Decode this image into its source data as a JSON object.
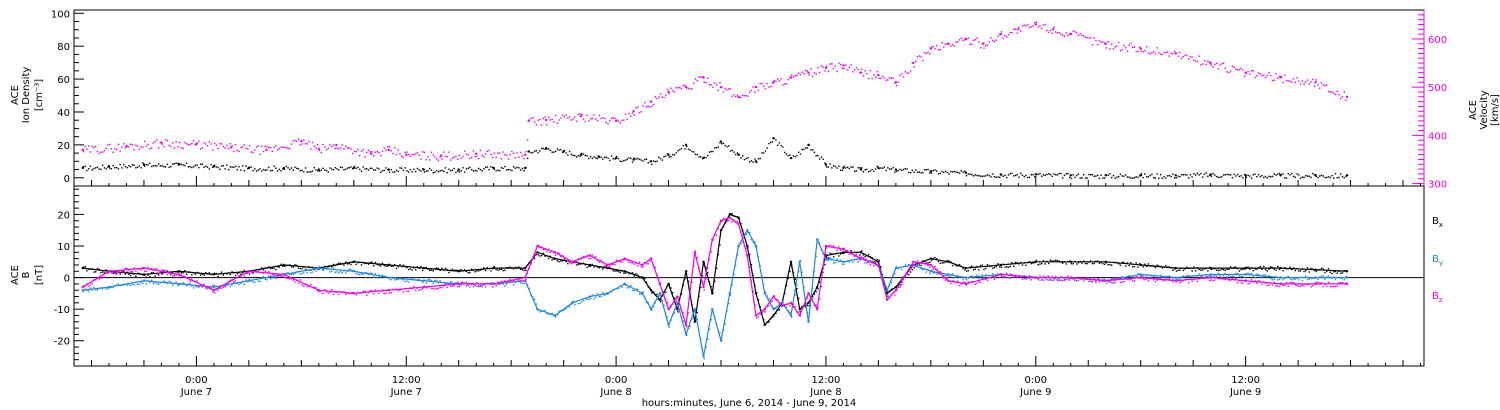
{
  "colors": {
    "black": "#000000",
    "magenta": "#ee00ee",
    "blue": "#1f88dd"
  },
  "xlabel": "hours:minutes, June  6, 2014 - June  9, 2014",
  "x_ticks": [
    {
      "time": "0:00",
      "date": "June 7",
      "hour": 24
    },
    {
      "time": "12:00",
      "date": "June 7",
      "hour": 36
    },
    {
      "time": "0:00",
      "date": "June 8",
      "hour": 48
    },
    {
      "time": "12:00",
      "date": "June 8",
      "hour": 60
    },
    {
      "time": "0:00",
      "date": "June 9",
      "hour": 72
    },
    {
      "time": "12:00",
      "date": "June 9",
      "hour": 84
    }
  ],
  "chart_data": [
    {
      "type": "scatter",
      "panel": "top",
      "x_unit": "hours since June 6 0:00",
      "xlim": [
        17,
        94.2
      ],
      "ylabel": [
        "ACE",
        "Ion Density",
        "[cm⁻³]"
      ],
      "ylim": [
        -5,
        102
      ],
      "yticks": [
        0,
        20,
        40,
        60,
        80,
        100
      ],
      "ylabel_right": [
        "ACE",
        "Velocity",
        "[km/s]"
      ],
      "ylim_right": [
        295,
        660
      ],
      "yticks_right": [
        300,
        400,
        500,
        600
      ],
      "series": [
        {
          "name": "Ion Density",
          "axis": "left",
          "color": "#000000",
          "x": [
            17.5,
            19,
            21,
            23,
            25,
            27,
            29,
            31,
            33,
            35,
            37,
            39,
            41,
            42.8,
            43,
            44,
            45,
            46,
            47,
            48,
            49,
            50,
            51,
            52,
            53,
            54,
            55,
            56,
            57,
            58,
            59,
            60,
            61,
            62,
            63,
            64,
            66,
            68,
            70,
            72,
            74,
            76,
            78,
            80,
            82,
            84,
            86,
            88,
            89.8
          ],
          "y": [
            6,
            7,
            8,
            8,
            7,
            6,
            6,
            5,
            6,
            5,
            5,
            5,
            6,
            6,
            16,
            18,
            16,
            14,
            13,
            12,
            11,
            10,
            14,
            20,
            12,
            22,
            14,
            10,
            24,
            12,
            20,
            8,
            6,
            5,
            6,
            5,
            4,
            3,
            2,
            2,
            1.5,
            1.5,
            1.5,
            1.5,
            2,
            1.5,
            1.5,
            1.5,
            1.5
          ]
        },
        {
          "name": "Velocity",
          "axis": "right",
          "color": "#ee00ee",
          "x": [
            17.5,
            20,
            22,
            24,
            26,
            28,
            30,
            31,
            32,
            34,
            35,
            36,
            38,
            40,
            42.8,
            43,
            44,
            46,
            48,
            49,
            50,
            51,
            52,
            53,
            54,
            55,
            56,
            57,
            58,
            59,
            60,
            61,
            62,
            63,
            64,
            65,
            66,
            67,
            68,
            69,
            70,
            71,
            72,
            73,
            74,
            76,
            78,
            80,
            82,
            84,
            86,
            88,
            89.8
          ],
          "y": [
            370,
            378,
            385,
            382,
            375,
            370,
            388,
            372,
            380,
            362,
            370,
            360,
            358,
            362,
            360,
            430,
            432,
            440,
            430,
            450,
            470,
            490,
            500,
            520,
            500,
            480,
            500,
            510,
            520,
            530,
            540,
            545,
            530,
            525,
            510,
            550,
            580,
            590,
            600,
            590,
            610,
            620,
            630,
            620,
            610,
            590,
            580,
            570,
            550,
            530,
            520,
            510,
            480
          ]
        }
      ]
    },
    {
      "type": "line",
      "panel": "bottom",
      "x_unit": "hours since June 6 0:00",
      "xlim": [
        17,
        94.2
      ],
      "ylabel": [
        "ACE",
        "B",
        "[nT]"
      ],
      "ylim": [
        -28,
        29
      ],
      "yticks": [
        -20,
        -10,
        0,
        10,
        20
      ],
      "reference_line": 0,
      "series": [
        {
          "name": "Bx",
          "color": "#000000",
          "x": [
            17.5,
            19,
            21,
            23,
            25,
            27,
            29,
            31,
            33,
            35,
            37,
            39,
            41,
            42.8,
            43.5,
            44.5,
            45.5,
            46.5,
            47.5,
            48.5,
            49.5,
            50,
            50.5,
            51,
            51.5,
            52,
            52.5,
            53,
            53.5,
            54,
            54.5,
            55,
            55.5,
            56,
            56.5,
            57,
            57.5,
            58,
            58.5,
            59,
            59.5,
            60,
            61,
            62,
            63,
            63.5,
            64,
            65,
            66,
            67,
            68,
            70,
            72,
            74,
            76,
            78,
            80,
            82,
            84,
            86,
            88,
            89.8
          ],
          "y": [
            3,
            2,
            1,
            2,
            1,
            2,
            4,
            3,
            5,
            4,
            3,
            2,
            3,
            3,
            8,
            6,
            5,
            4,
            3,
            2,
            0,
            -4,
            -7,
            -2,
            -10,
            2,
            -14,
            5,
            -5,
            15,
            20,
            19,
            10,
            -5,
            -15,
            -12,
            -8,
            5,
            -10,
            -8,
            -3,
            7,
            8,
            8,
            5,
            -5,
            -3,
            4,
            6,
            5,
            3,
            4,
            5,
            5,
            5,
            4,
            3,
            3,
            3,
            3,
            2.5,
            2
          ]
        },
        {
          "name": "By",
          "color": "#1f88dd",
          "x": [
            17.5,
            19,
            21,
            23,
            25,
            27,
            29,
            31,
            33,
            35,
            37,
            39,
            41,
            42.8,
            43.5,
            44.5,
            45.5,
            46.5,
            47.5,
            48.5,
            49.5,
            50,
            50.5,
            51,
            51.5,
            52,
            52.5,
            53,
            53.5,
            54,
            54.5,
            55,
            55.5,
            56,
            56.5,
            57,
            57.5,
            58,
            58.5,
            59,
            59.5,
            60,
            61,
            62,
            63,
            63.5,
            64,
            65,
            66,
            67,
            68,
            70,
            72,
            74,
            76,
            78,
            80,
            82,
            84,
            86,
            88,
            89.8
          ],
          "y": [
            -4,
            -3,
            -1,
            -2,
            -3,
            -1,
            1,
            3,
            2,
            0,
            -1,
            -2,
            -2,
            -1,
            -10,
            -12,
            -8,
            -6,
            -5,
            -2,
            -5,
            -10,
            -5,
            -15,
            -8,
            -18,
            -10,
            -25,
            -10,
            -20,
            -5,
            10,
            15,
            10,
            -5,
            -10,
            -8,
            -12,
            5,
            -14,
            12,
            6,
            5,
            6,
            4,
            -4,
            3,
            4,
            2,
            1,
            0,
            1,
            0,
            0,
            -1,
            1,
            0,
            1,
            1,
            0,
            0,
            0
          ]
        },
        {
          "name": "Bz",
          "color": "#ee00ee",
          "x": [
            17.5,
            19,
            21,
            23,
            25,
            27,
            29,
            31,
            33,
            35,
            37,
            39,
            41,
            42.8,
            43.5,
            44.5,
            45.5,
            46.5,
            47.5,
            48.5,
            49.5,
            50,
            50.5,
            51,
            51.5,
            52,
            52.5,
            53,
            53.5,
            54,
            54.5,
            55,
            55.5,
            56,
            56.5,
            57,
            57.5,
            58,
            58.5,
            59,
            59.5,
            60,
            61,
            62,
            63,
            63.5,
            64,
            65,
            66,
            67,
            68,
            70,
            72,
            74,
            76,
            78,
            80,
            82,
            84,
            86,
            88,
            89.8
          ],
          "y": [
            -3,
            2,
            3,
            1,
            -4,
            2,
            1,
            -4,
            -5,
            -4,
            -3,
            -2,
            -2,
            0,
            10,
            8,
            5,
            7,
            4,
            6,
            4,
            6,
            -2,
            -10,
            -6,
            -15,
            8,
            -3,
            12,
            18,
            19,
            17,
            7,
            -12,
            -10,
            -6,
            -9,
            -8,
            -12,
            -5,
            -10,
            10,
            9,
            6,
            4,
            -7,
            -4,
            5,
            4,
            -1,
            -2,
            1,
            0,
            0,
            -1,
            0,
            -1,
            0,
            -1,
            -2,
            -2,
            -2
          ]
        }
      ],
      "legend": [
        {
          "label": "B",
          "sub": "x",
          "color": "#000000"
        },
        {
          "label": "B",
          "sub": "y",
          "color": "#1f88dd"
        },
        {
          "label": "B",
          "sub": "z",
          "color": "#ee00ee"
        }
      ]
    }
  ]
}
